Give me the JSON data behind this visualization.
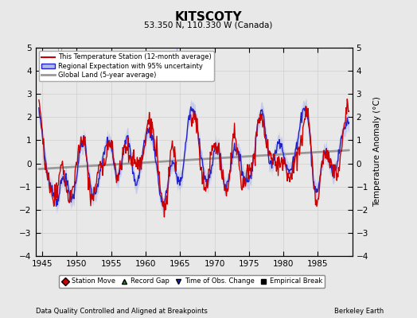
{
  "title": "KITSCOTY",
  "subtitle": "53.350 N, 110.330 W (Canada)",
  "xlabel_left": "Data Quality Controlled and Aligned at Breakpoints",
  "xlabel_right": "Berkeley Earth",
  "ylabel": "Temperature Anomaly (°C)",
  "xlim": [
    1944,
    1990
  ],
  "ylim": [
    -4,
    5
  ],
  "yticks": [
    -4,
    -3,
    -2,
    -1,
    0,
    1,
    2,
    3,
    4,
    5
  ],
  "xticks": [
    1945,
    1950,
    1955,
    1960,
    1965,
    1970,
    1975,
    1980,
    1985
  ],
  "bg_color": "#e8e8e8",
  "plot_bg_color": "#e8e8e8",
  "uncertainty_color": "#b0b8e8",
  "regional_color": "#2222cc",
  "station_color": "#cc0000",
  "global_color": "#999999",
  "obs_change_years": [
    1947.3,
    1947.8,
    1964.5
  ],
  "legend_entries": [
    {
      "label": "This Temperature Station (12-month average)",
      "color": "#cc0000",
      "lw": 1.5
    },
    {
      "label": "Regional Expectation with 95% uncertainty",
      "color": "#2222cc",
      "lw": 1.5
    },
    {
      "label": "Global Land (5-year average)",
      "color": "#999999",
      "lw": 2.0
    }
  ],
  "marker_legend": [
    {
      "label": "Station Move",
      "color": "#cc0000",
      "marker": "D"
    },
    {
      "label": "Record Gap",
      "color": "#228B22",
      "marker": "^"
    },
    {
      "label": "Time of Obs. Change",
      "color": "#2222cc",
      "marker": "v"
    },
    {
      "label": "Empirical Break",
      "color": "#000000",
      "marker": "s"
    }
  ]
}
